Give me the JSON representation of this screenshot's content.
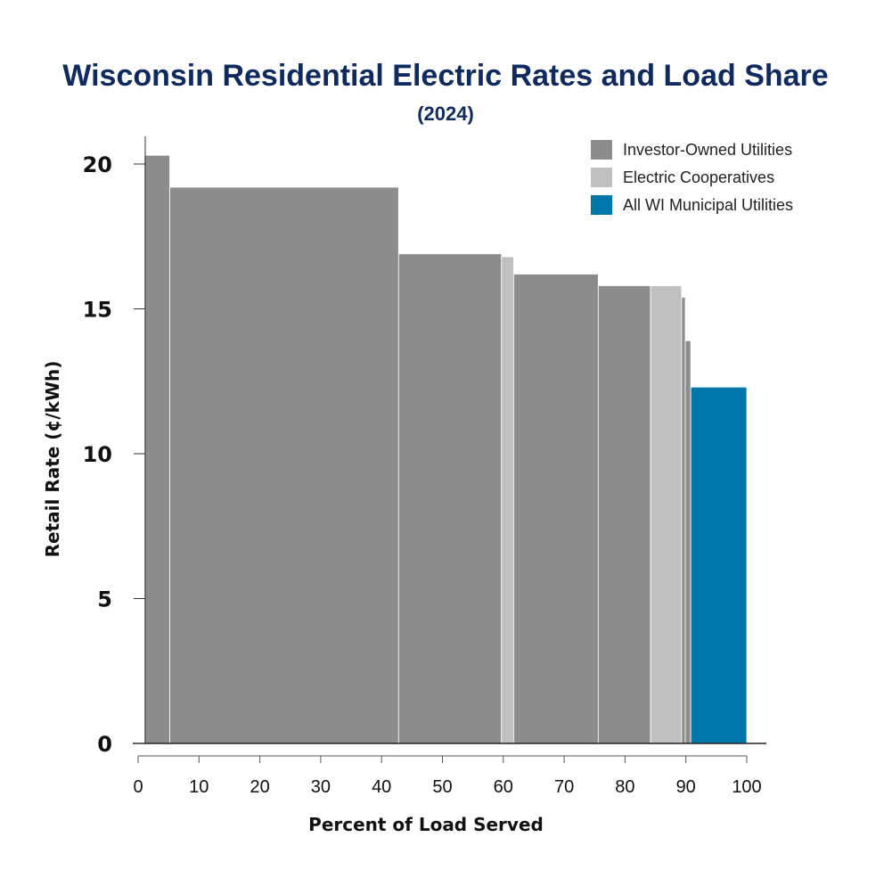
{
  "chart_data": {
    "type": "bar",
    "subtype": "variable-width",
    "title": "Wisconsin Residential Electric Rates and Load Share",
    "subtitle": "(2024)",
    "xlabel": "Percent of Load Served",
    "ylabel": "Retail Rate (¢/kWh)",
    "xlim": [
      0,
      100
    ],
    "ylim": [
      0,
      21
    ],
    "x_ticks": [
      0,
      10,
      20,
      30,
      40,
      50,
      60,
      70,
      80,
      90,
      100
    ],
    "y_ticks": [
      0,
      5,
      10,
      15,
      20
    ],
    "grid": false,
    "legend_position": "top-right",
    "legend": [
      {
        "name": "Investor-Owned Utilities",
        "color": "#8c8c8c"
      },
      {
        "name": "Electric Cooperatives",
        "color": "#c0c0c0"
      },
      {
        "name": "All WI Municipal Utilities",
        "color": "#0076a8"
      }
    ],
    "bars": [
      {
        "category": "Investor-Owned Utilities",
        "x_start": 1,
        "x_end": 5.2,
        "value": 20.3
      },
      {
        "category": "Investor-Owned Utilities",
        "x_start": 5.2,
        "x_end": 42.8,
        "value": 19.2
      },
      {
        "category": "Investor-Owned Utilities",
        "x_start": 42.8,
        "x_end": 59.7,
        "value": 16.9
      },
      {
        "category": "Electric Cooperatives",
        "x_start": 59.7,
        "x_end": 61.7,
        "value": 16.8
      },
      {
        "category": "Investor-Owned Utilities",
        "x_start": 61.7,
        "x_end": 75.6,
        "value": 16.2
      },
      {
        "category": "Investor-Owned Utilities",
        "x_start": 75.6,
        "x_end": 84.2,
        "value": 15.8
      },
      {
        "category": "Electric Cooperatives",
        "x_start": 84.2,
        "x_end": 89.3,
        "value": 15.8
      },
      {
        "category": "Investor-Owned Utilities",
        "x_start": 89.3,
        "x_end": 89.9,
        "value": 15.4
      },
      {
        "category": "Investor-Owned Utilities",
        "x_start": 89.9,
        "x_end": 90.8,
        "value": 13.9
      },
      {
        "category": "All WI Municipal Utilities",
        "x_start": 90.8,
        "x_end": 100,
        "value": 12.3
      }
    ]
  }
}
